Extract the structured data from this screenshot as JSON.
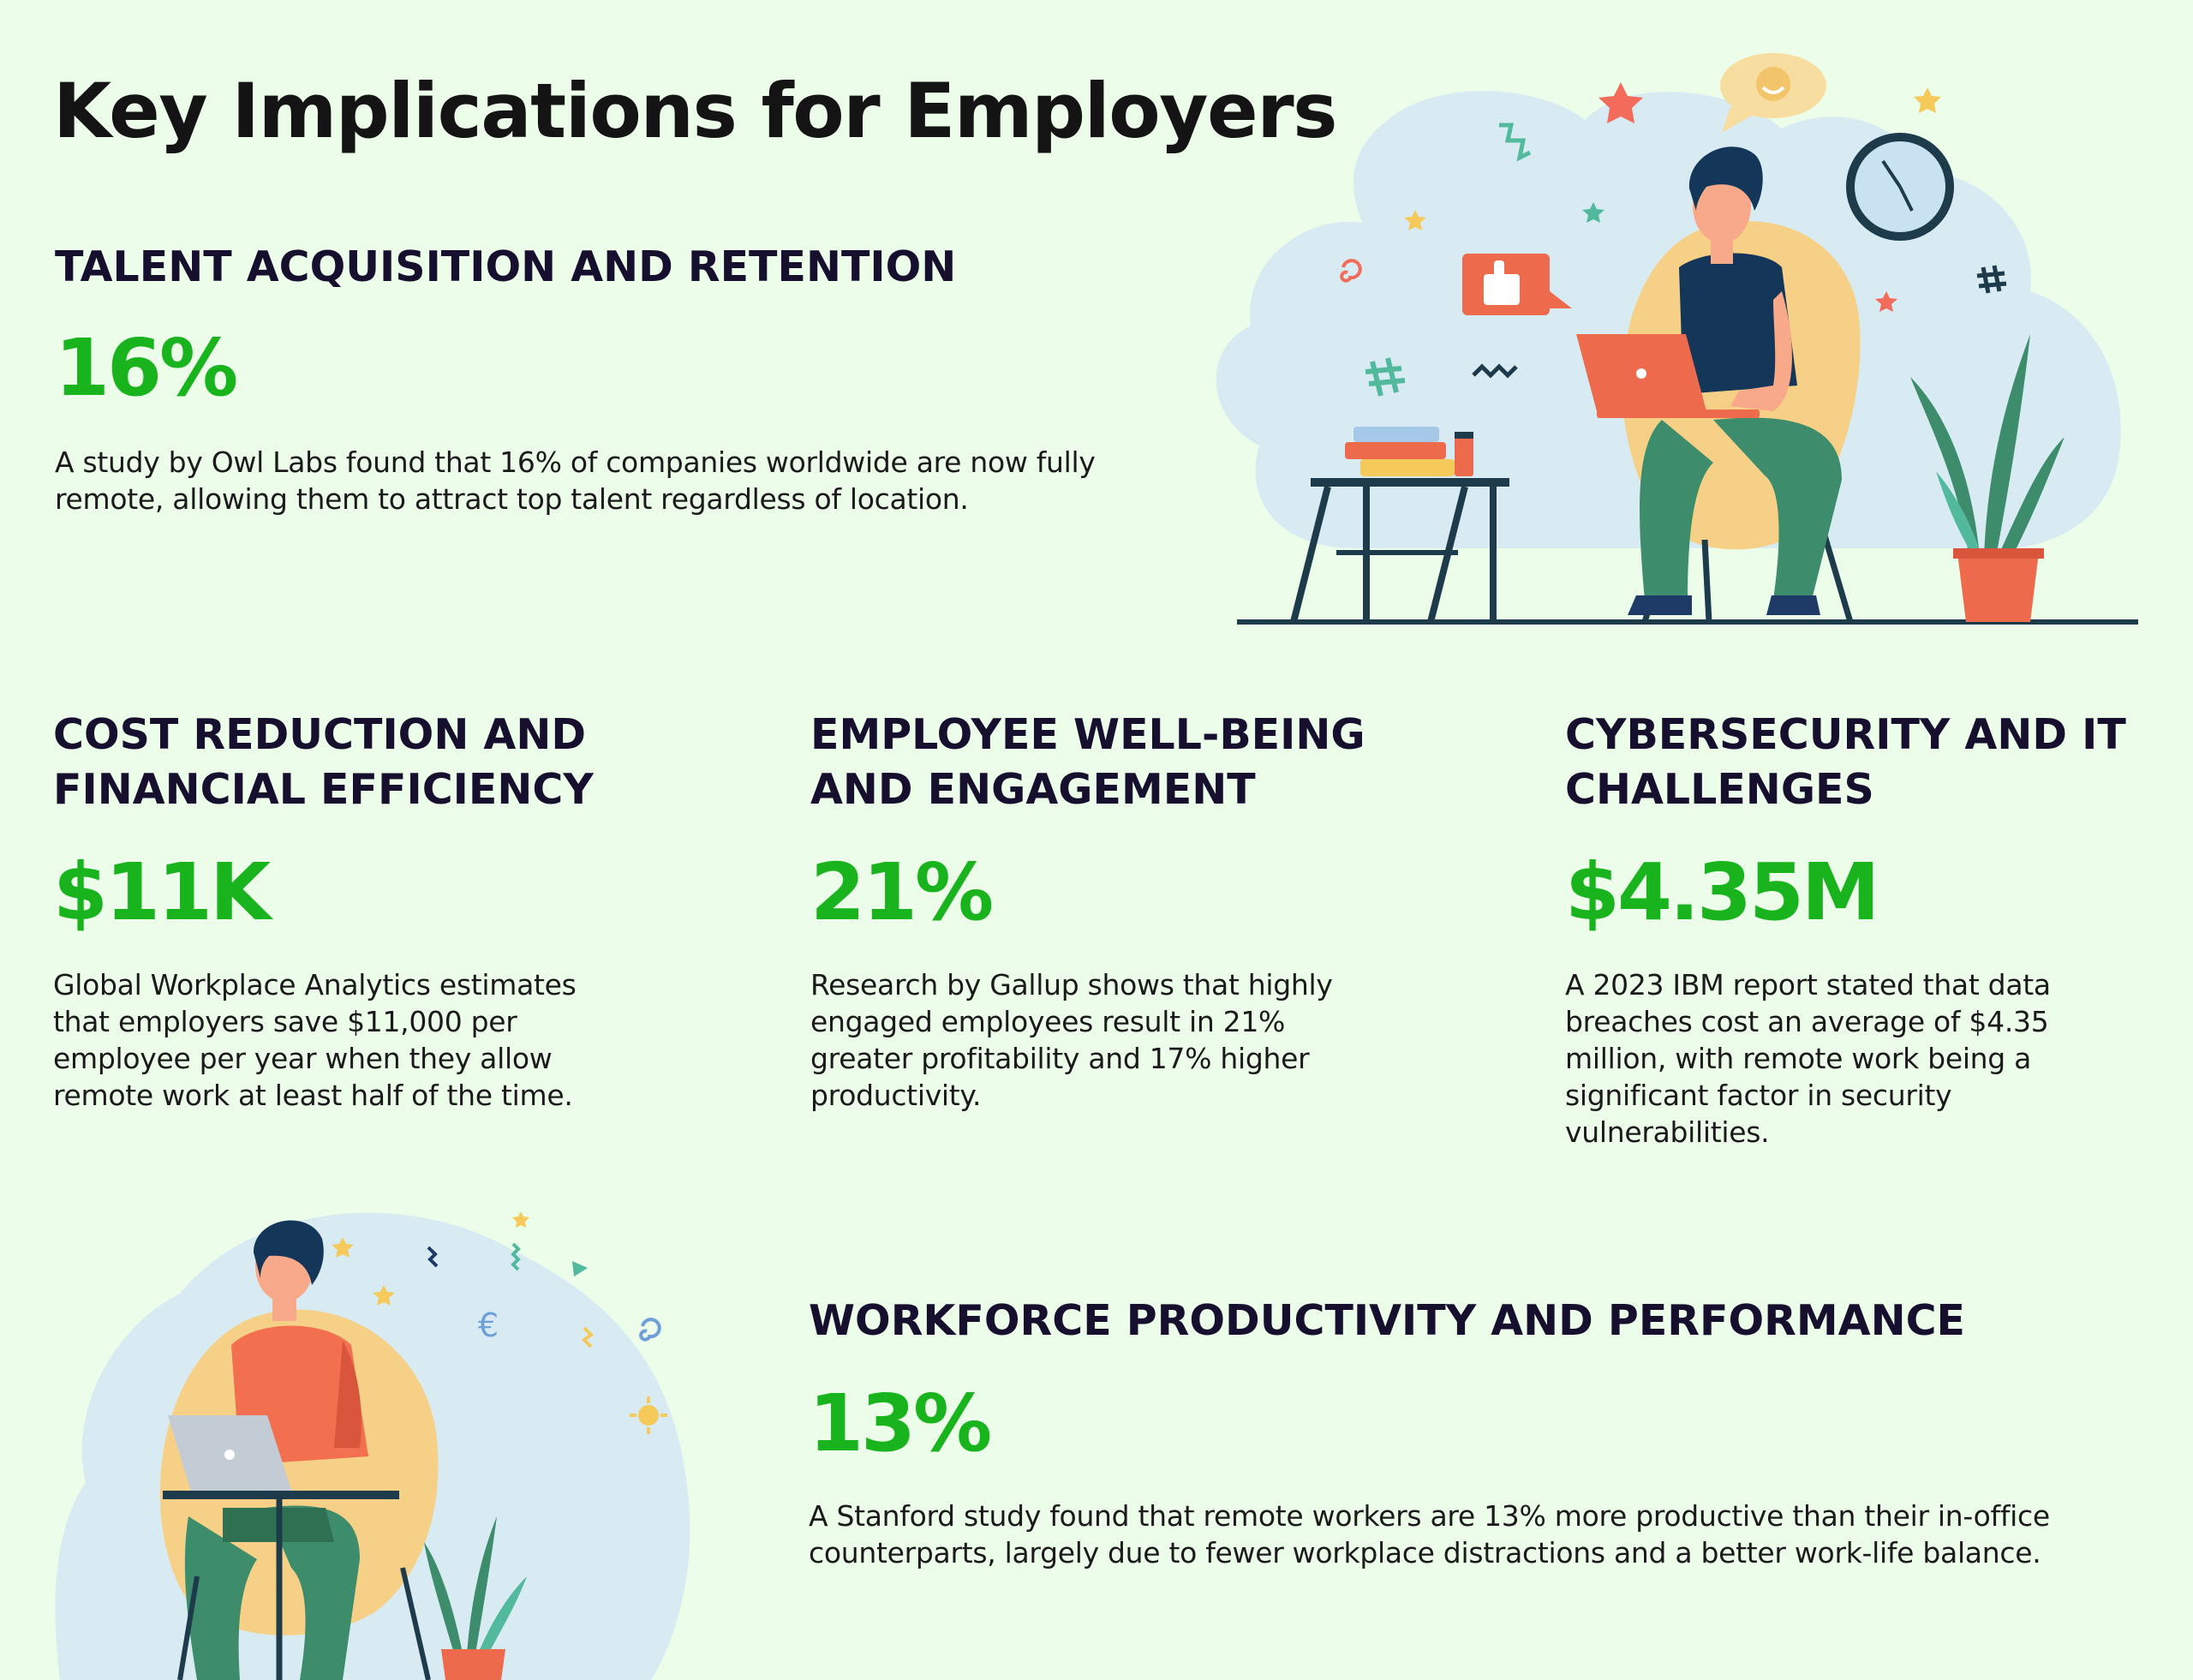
{
  "page_title": "Key Implications for Employers",
  "sections": {
    "talent": {
      "heading": "TALENT ACQUISITION AND RETENTION",
      "stat": "16%",
      "description": "A study by Owl Labs found that 16% of companies worldwide are now fully remote, allowing them to attract top talent regardless of location."
    },
    "cost": {
      "heading": "COST REDUCTION AND FINANCIAL EFFICIENCY",
      "stat": "$11K",
      "description": "Global Workplace Analytics estimates that employers save $11,000 per employee per year when they allow remote work at least half of the time."
    },
    "wellbeing": {
      "heading": "EMPLOYEE WELL-BEING AND ENGAGEMENT",
      "stat": "21%",
      "description": "Research by Gallup shows that highly engaged employees result in 21% greater profitability and 17% higher productivity."
    },
    "cyber": {
      "heading": "CYBERSECURITY AND IT CHALLENGES",
      "stat": "$4.35M",
      "description": "A 2023 IBM report stated that data breaches cost an average of $4.35 million, with remote work being a significant factor in security vulnerabilities."
    },
    "productivity": {
      "heading": "WORKFORCE PRODUCTIVITY AND PERFORMANCE",
      "stat": "13%",
      "description": "A Stanford study found that remote workers are 13% more productive than their in-office counterparts, largely due to fewer workplace distractions and a better work-life balance."
    }
  },
  "illustrations": {
    "top_right": "person-on-laptop-in-chair-illustration",
    "bottom_left": "person-working-at-desk-illustration"
  },
  "colors": {
    "background": "#ecfde9",
    "stat_green": "#19b31e",
    "heading_navy": "#16102e"
  }
}
